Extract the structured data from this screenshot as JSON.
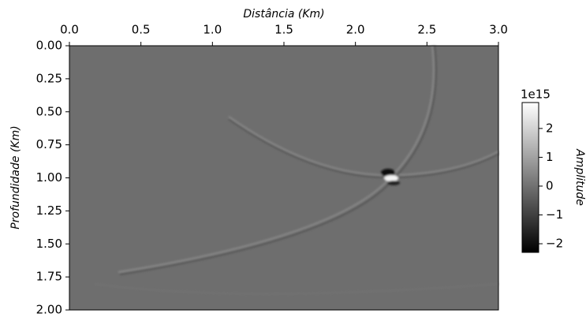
{
  "chart_data": {
    "type": "heatmap",
    "xlabel": "Distância (Km)",
    "ylabel": "Profundidade (Km)",
    "xlim": [
      0,
      3
    ],
    "ylim": [
      2,
      0
    ],
    "xticks": [
      {
        "value": 0,
        "label": "0.0"
      },
      0.5,
      {
        "value": 1,
        "label": "1.0"
      },
      1.5,
      {
        "value": 2,
        "label": "2.0"
      },
      2.5,
      {
        "value": 3,
        "label": "3.0"
      }
    ],
    "yticks": [
      {
        "value": 0,
        "label": "0.00"
      },
      0.25,
      {
        "value": 0.5,
        "label": "0.50"
      },
      0.75,
      {
        "value": 1,
        "label": "1.00"
      },
      1.25,
      {
        "value": 1.5,
        "label": "1.50"
      },
      1.75,
      {
        "value": 2,
        "label": "2.00"
      }
    ],
    "colorbar": {
      "label": "Amplitude",
      "offset": "1e15",
      "clim": [
        -2.3,
        2.9
      ],
      "colormap": [
        "#000000",
        "#ffffff"
      ],
      "ticks": [
        {
          "value": -2,
          "label": "−2"
        },
        {
          "value": -1,
          "label": "−1"
        },
        0,
        1,
        2
      ]
    }
  }
}
